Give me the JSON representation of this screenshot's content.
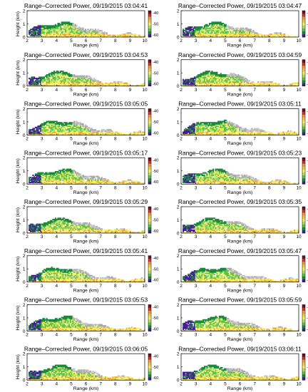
{
  "chart_data": {
    "type": "heatmap",
    "panel_title_prefix": "Range–Corrected Power, 09/19/2015",
    "xlabel": "Range (km)",
    "ylabel": "Height (km)",
    "xlim": [
      2,
      10
    ],
    "ylim": [
      0,
      2
    ],
    "x_ticks": [
      "2",
      "3",
      "4",
      "5",
      "6",
      "7",
      "8",
      "9",
      "10"
    ],
    "y_ticks": [
      "0",
      "1",
      "2"
    ],
    "colorbar_ticks": [
      "-40",
      "-50",
      "-60"
    ],
    "colorbar_range": [
      -62,
      -38
    ],
    "colormap": [
      "#4b1a9b",
      "#1b8a3a",
      "#5cc24a",
      "#b5d96a",
      "#f7f05a",
      "#f2c94c",
      "#e9a23b",
      "#d1342b",
      "#7a0a1f"
    ],
    "panels": [
      {
        "time": "03:04:41"
      },
      {
        "time": "03:04:47"
      },
      {
        "time": "03:04:53"
      },
      {
        "time": "03:04:59"
      },
      {
        "time": "03:05:05"
      },
      {
        "time": "03:05:11"
      },
      {
        "time": "03:05:17"
      },
      {
        "time": "03:05:23"
      },
      {
        "time": "03:05:29"
      },
      {
        "time": "03:05:35"
      },
      {
        "time": "03:05:41"
      },
      {
        "time": "03:05:47"
      },
      {
        "time": "03:05:53"
      },
      {
        "time": "03:05:59"
      },
      {
        "time": "03:06:05"
      },
      {
        "time": "03:06:11"
      }
    ]
  }
}
